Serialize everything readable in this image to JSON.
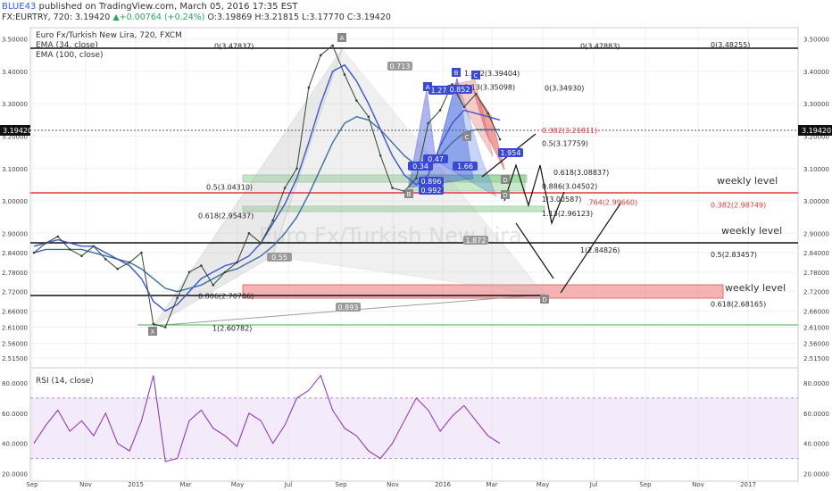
{
  "header": {
    "author": "BLUE43",
    "published": "published on TradingView.com, March 05, 2016 17:35 EST",
    "symbol": "FX:EURTRY, 720",
    "last": "3.19420",
    "change": "+0.00764 (+0.24%)",
    "ohlc": "O:3.19869 H:3.21815 L:3.17770 C:3.19420"
  },
  "legend": {
    "title": "Euro Fx/Turkish New Lira, 720, FXCM",
    "ema34": "EMA (34, close)",
    "ema100": "EMA (100, close)",
    "rsi": "RSI (14, close)",
    "watermark": "Euro Fx/Turkish New Lira"
  },
  "colors": {
    "price": "#2d4a2d",
    "ema34": "#3a55d4",
    "ema100": "#3a6fa0",
    "rsi": "#8b2ab8",
    "grid": "#eef0f3",
    "fib_red": "#e53935",
    "green_zone": "#4caf50",
    "red_zone": "#f06a6a",
    "pattern_gray": "#b8b8b8",
    "pattern_blue": "#3949d6",
    "pattern_red": "#e84a5f"
  },
  "chart_data": [
    {
      "type": "line",
      "title": "Euro Fx/Turkish New Lira, 720, FXCM",
      "x_ticks": [
        "Sep",
        "Nov",
        "2015",
        "Mar",
        "May",
        "Jul",
        "Sep",
        "Nov",
        "2016",
        "Mar",
        "May",
        "Jul",
        "Sep",
        "Nov",
        "2017"
      ],
      "y_ticks": [
        "3.50000",
        "3.40000",
        "3.30000",
        "3.20000",
        "3.10000",
        "3.00000",
        "2.90000",
        "2.84000",
        "2.78000",
        "2.72000",
        "2.66000",
        "2.61000",
        "2.56000",
        "2.51500"
      ],
      "ylim": [
        2.49,
        3.535
      ],
      "price_label": "3.19420",
      "series": [
        {
          "name": "EMA (34, close)",
          "values": [
            2.86,
            2.87,
            2.88,
            2.87,
            2.86,
            2.86,
            2.84,
            2.82,
            2.8,
            2.76,
            2.69,
            2.66,
            2.68,
            2.72,
            2.76,
            2.78,
            2.8,
            2.81,
            2.83,
            2.87,
            2.93,
            2.99,
            3.07,
            3.18,
            3.3,
            3.4,
            3.42,
            3.37,
            3.3,
            3.22,
            3.14,
            3.08,
            3.05,
            3.08,
            3.17,
            3.24,
            3.28,
            3.27,
            3.26,
            3.25
          ]
        },
        {
          "name": "EMA (100, close)",
          "values": [
            2.84,
            2.85,
            2.85,
            2.85,
            2.85,
            2.84,
            2.83,
            2.82,
            2.81,
            2.79,
            2.76,
            2.73,
            2.72,
            2.73,
            2.74,
            2.76,
            2.78,
            2.79,
            2.81,
            2.83,
            2.86,
            2.9,
            2.95,
            3.02,
            3.1,
            3.18,
            3.24,
            3.26,
            3.25,
            3.22,
            3.18,
            3.14,
            3.11,
            3.11,
            3.14,
            3.18,
            3.21,
            3.22,
            3.22,
            3.22
          ]
        },
        {
          "name": "Price",
          "values": [
            2.84,
            2.87,
            2.89,
            2.85,
            2.83,
            2.86,
            2.82,
            2.79,
            2.81,
            2.84,
            2.62,
            2.61,
            2.7,
            2.78,
            2.8,
            2.74,
            2.78,
            2.81,
            2.9,
            2.87,
            2.94,
            3.04,
            3.1,
            3.35,
            3.45,
            3.48,
            3.39,
            3.31,
            3.26,
            3.14,
            3.04,
            3.03,
            3.07,
            3.24,
            3.28,
            3.36,
            3.29,
            3.33,
            3.27,
            3.19
          ]
        }
      ],
      "levels": [
        {
          "label": "0(3.48255)",
          "y": 3.48255
        },
        {
          "label": "0(3.47837)",
          "y": 3.47837
        },
        {
          "label": "0(3.47883)",
          "y": 3.47883
        },
        {
          "label": "1.272(3.39404)",
          "y": 3.39404
        },
        {
          "label": "0(3.34930)",
          "y": 3.3493
        },
        {
          "label": "1.13(3.35098)",
          "y": 3.35098
        },
        {
          "label": "0.382(3.21811)",
          "y": 3.21811
        },
        {
          "label": "0.5(3.17759)",
          "y": 3.17759
        },
        {
          "label": "0.618(3.08837)",
          "y": 3.08837
        },
        {
          "label": "0.5(3.04310)",
          "y": 3.0431
        },
        {
          "label": "0.886(3.04502)",
          "y": 3.04502
        },
        {
          "label": "1(3.00587)",
          "y": 3.00587
        },
        {
          "label": "0.382(2.98749)",
          "y": 2.98749
        },
        {
          "label": ".764(2.99660)",
          "y": 2.9966
        },
        {
          "label": "1.13(2.96123)",
          "y": 2.96123
        },
        {
          "label": "0.618(2.95437)",
          "y": 2.95437
        },
        {
          "label": "1(2.84826)",
          "y": 2.84826
        },
        {
          "label": "0.5(2.83457)",
          "y": 2.83457
        },
        {
          "label": "0.886(2.70706)",
          "y": 2.70706
        },
        {
          "label": "0.618(2.68165)",
          "y": 2.68165
        },
        {
          "label": "1(2.60782)",
          "y": 2.60782
        }
      ],
      "ratio_labels": [
        "0.713",
        "0.55",
        "1.872",
        "0.893",
        "1.274",
        "0.852",
        "0.47",
        "1.66",
        "0.896",
        "0.992",
        "1.954",
        "0.34"
      ],
      "point_labels": [
        "X",
        "A",
        "D",
        "A",
        "B",
        "C",
        "D",
        "B",
        "C",
        "D"
      ],
      "annotations": [
        "weekly level",
        "weekly level",
        "weekly level"
      ]
    },
    {
      "type": "line",
      "title": "RSI (14, close)",
      "y_ticks": [
        "80.0000",
        "60.0000",
        "40.0000",
        "20.0000"
      ],
      "ylim": [
        15,
        90
      ],
      "band": [
        30,
        70
      ],
      "series": [
        {
          "name": "RSI (14, close)",
          "values": [
            40,
            52,
            62,
            48,
            55,
            45,
            60,
            40,
            35,
            55,
            85,
            28,
            30,
            55,
            62,
            50,
            45,
            38,
            60,
            55,
            40,
            52,
            70,
            75,
            85,
            62,
            50,
            45,
            35,
            30,
            40,
            55,
            70,
            62,
            48,
            58,
            65,
            55,
            45,
            40
          ]
        }
      ]
    }
  ]
}
